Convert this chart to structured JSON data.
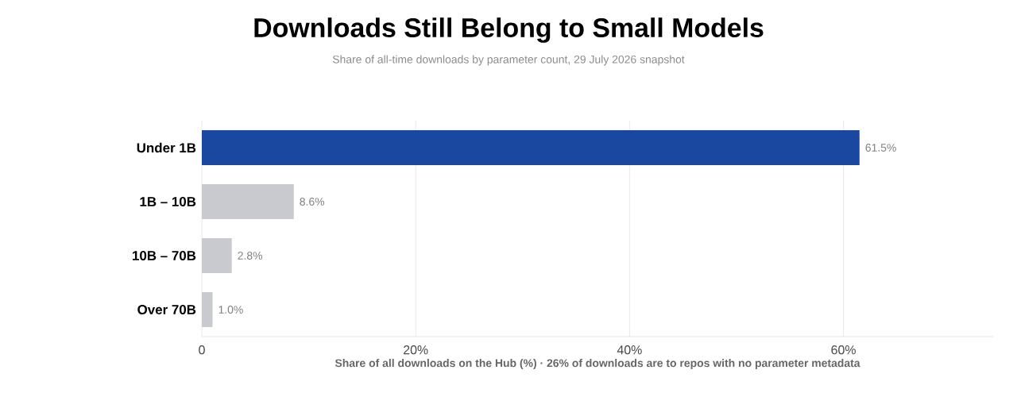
{
  "chart_data": {
    "type": "bar",
    "orientation": "horizontal",
    "title": "Downloads Still Belong to Small Models",
    "subtitle": "Share of all-time downloads by parameter count, 29 July 2026 snapshot",
    "xlabel": "Share of all downloads on the Hub (%)  ·  26% of downloads are to repos with no parameter metadata",
    "categories": [
      "Under 1B",
      "1B – 10B",
      "10B – 70B",
      "Over 70B"
    ],
    "values": [
      61.5,
      8.6,
      2.8,
      1.0
    ],
    "colors": [
      "#1a47a0",
      "#c8cad0",
      "#c8cad0",
      "#c8cad0"
    ],
    "value_labels": [
      "61.5%",
      "8.6%",
      "2.8%",
      "1.0%"
    ],
    "xlim": [
      0,
      74
    ],
    "xticks": [
      0,
      {
        "value": 20,
        "label": "20%"
      },
      {
        "value": 40,
        "label": "40%"
      },
      {
        "value": 60,
        "label": "60%"
      }
    ],
    "grid": "x"
  }
}
